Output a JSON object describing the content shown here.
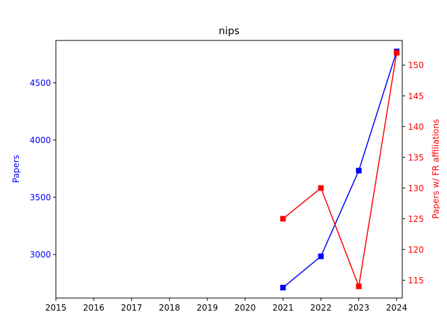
{
  "chart_data": {
    "type": "line",
    "title": "nips",
    "xlabel": "",
    "x_ticks": [
      "2015",
      "2016",
      "2017",
      "2018",
      "2019",
      "2020",
      "2021",
      "2022",
      "2023",
      "2024"
    ],
    "xlim": [
      2015,
      2024.15
    ],
    "left_axis": {
      "label": "Papers",
      "color": "#0000ff",
      "ylim": [
        2620,
        4870
      ],
      "ticks": [
        3000,
        3500,
        4000,
        4500
      ]
    },
    "right_axis": {
      "label": "Papers w/ FR affiliations",
      "color": "#ff0000",
      "ylim": [
        112.1,
        154.0
      ],
      "ticks": [
        115,
        120,
        125,
        130,
        135,
        140,
        145,
        150
      ]
    },
    "series": [
      {
        "axis": "left",
        "color": "#0000ff",
        "marker": "square",
        "x": [
          2021,
          2022,
          2023,
          2024
        ],
        "values": [
          2711,
          2984,
          3733,
          4774
        ]
      },
      {
        "axis": "right",
        "color": "#ff0000",
        "marker": "square",
        "x": [
          2021,
          2022,
          2023,
          2024
        ],
        "values": [
          125,
          130,
          114,
          152
        ]
      }
    ],
    "grid": false,
    "legend": "none"
  }
}
